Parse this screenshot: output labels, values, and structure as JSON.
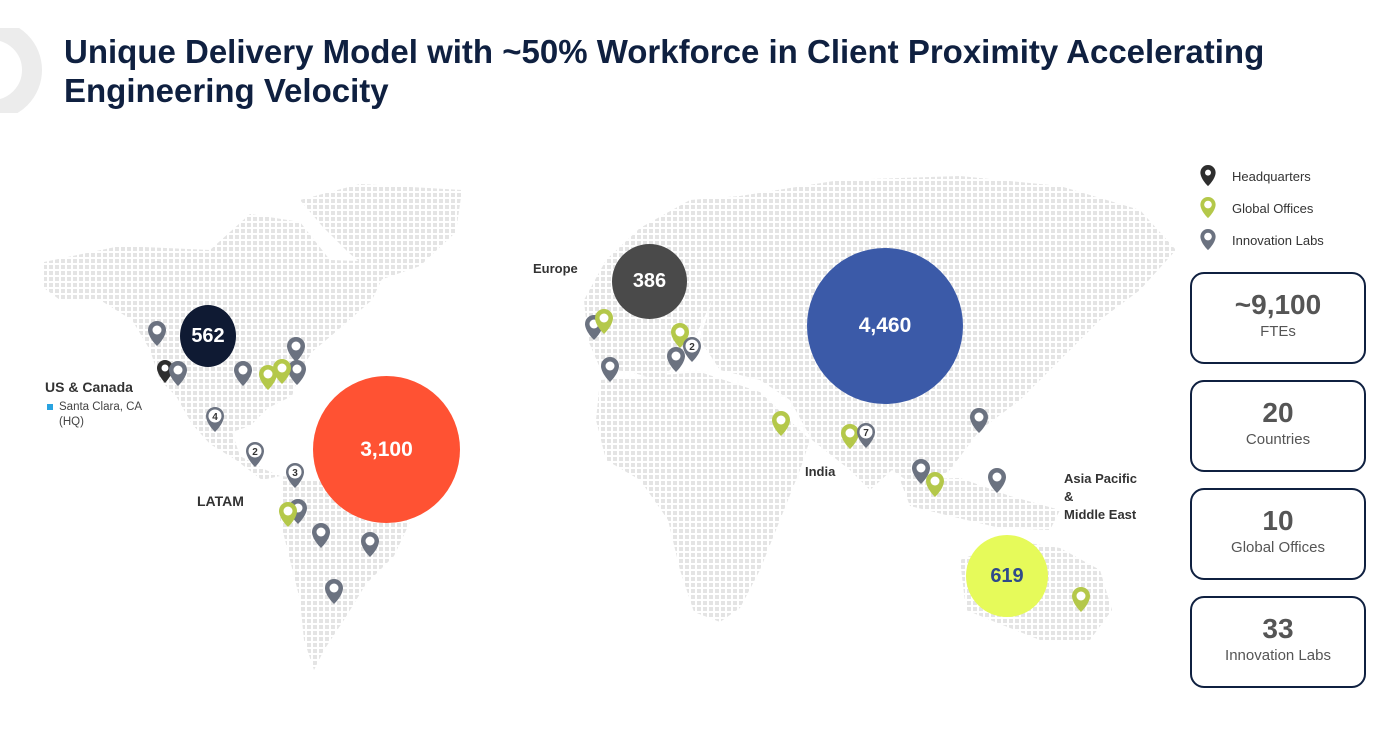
{
  "title": "Unique Delivery Model with ~50% Workforce in Client Proximity Accelerating Engineering Velocity",
  "regions": {
    "us_canada": "US & Canada",
    "hq_location": "Santa Clara, CA",
    "hq_tag": "(HQ)",
    "latam": "LATAM",
    "europe": "Europe",
    "india": "India",
    "apac_line1": "Asia Pacific",
    "apac_line2": "&",
    "apac_line3": "Middle East"
  },
  "bubbles": {
    "us_canada": "562",
    "latam": "3,100",
    "europe": "386",
    "india": "4,460",
    "apac": "619"
  },
  "pin_counts": {
    "mexico": "4",
    "central_america": "2",
    "colombia": "3",
    "eastern_europe": "2",
    "india": "7"
  },
  "legend": {
    "headquarters": "Headquarters",
    "global_offices": "Global Offices",
    "innovation_labs": "Innovation Labs"
  },
  "stats": [
    {
      "value": "~9,100",
      "label": "FTEs"
    },
    {
      "value": "20",
      "label": "Countries"
    },
    {
      "value": "10",
      "label": "Global Offices"
    },
    {
      "value": "33",
      "label": "Innovation Labs"
    }
  ],
  "colors": {
    "title": "#0f2040",
    "us_bubble": "#0f1a33",
    "latam_bubble": "#ff5233",
    "europe_bubble": "#4a4a4a",
    "india_bubble": "#3b5aa8",
    "apac_bubble": "#e6fa5a",
    "pin_headquarters": "#2e2e2e",
    "pin_office": "#b4c84a",
    "pin_lab": "#6b7280"
  }
}
